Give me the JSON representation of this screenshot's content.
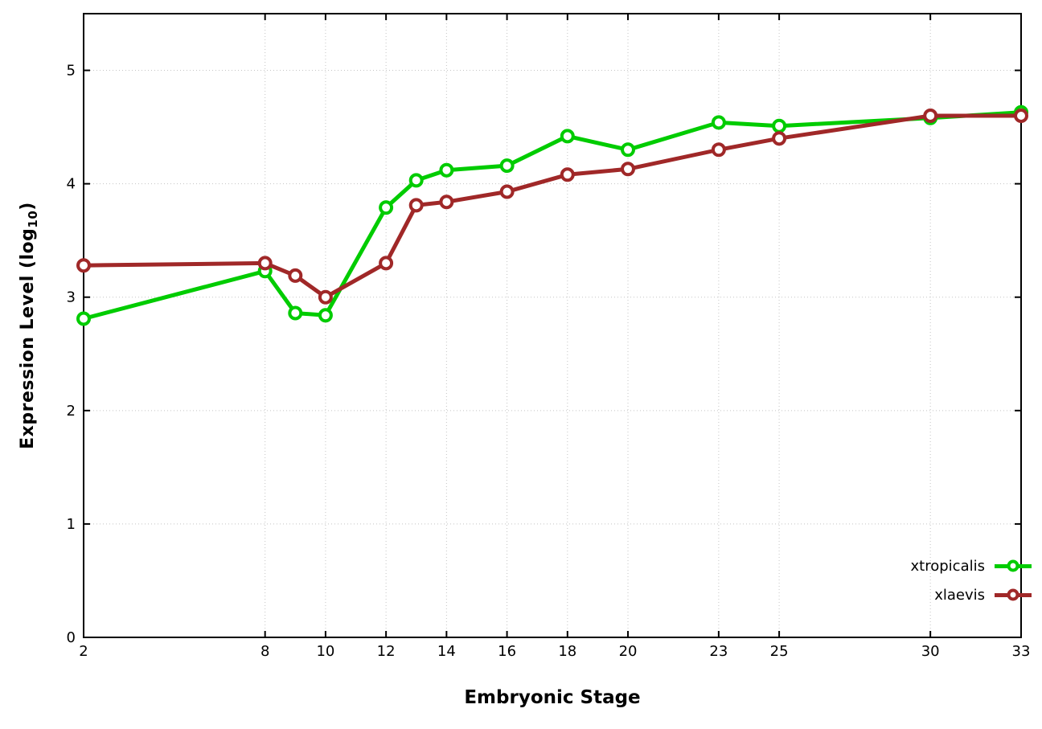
{
  "chart_data": {
    "type": "line",
    "x": [
      2,
      8,
      9,
      10,
      12,
      13,
      14,
      16,
      18,
      20,
      23,
      25,
      30,
      33
    ],
    "series": [
      {
        "name": "xtropicalis",
        "color": "#00cc00",
        "values": [
          2.81,
          3.23,
          2.86,
          2.84,
          3.79,
          4.03,
          4.12,
          4.16,
          4.42,
          4.3,
          4.54,
          4.51,
          4.58,
          4.63
        ]
      },
      {
        "name": "xlaevis",
        "color": "#a02828",
        "values": [
          3.28,
          3.3,
          3.19,
          3.0,
          3.3,
          3.81,
          3.84,
          3.93,
          4.08,
          4.13,
          4.3,
          4.4,
          4.6,
          4.6
        ]
      }
    ],
    "xlabel": "Embryonic Stage",
    "ylabel": {
      "pre": "Expression Level (log",
      "sub": "10",
      "post": ")"
    },
    "x_ticks": [
      2,
      8,
      10,
      12,
      14,
      16,
      18,
      20,
      23,
      25,
      30,
      33
    ],
    "y_ticks": [
      0,
      1,
      2,
      3,
      4,
      5
    ],
    "xlim": [
      2,
      33
    ],
    "ylim": [
      0,
      5.5
    ],
    "grid": true,
    "legend_position": "inside-right-lower",
    "colors": {
      "axis": "#000000",
      "grid": "#c4c4c4",
      "background": "#ffffff"
    }
  }
}
